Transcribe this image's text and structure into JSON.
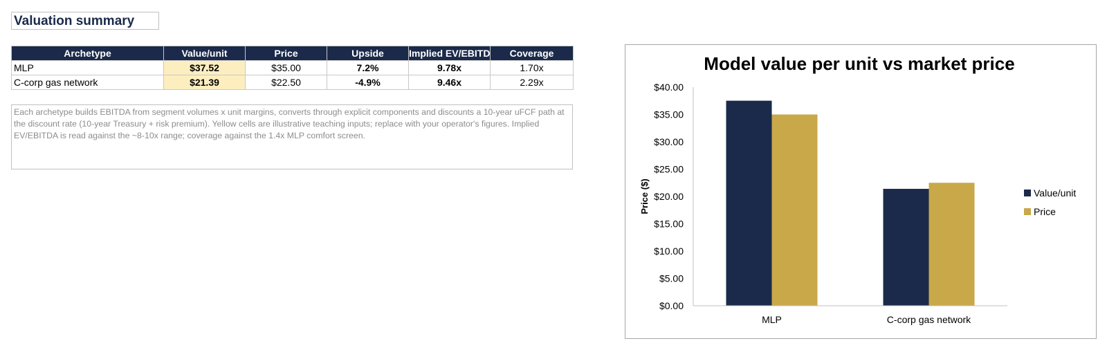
{
  "sheet": {
    "title": "Valuation summary",
    "note": "Each archetype builds EBITDA from segment volumes x unit margins, converts through explicit components and discounts a 10-year uFCF path at the discount rate (10-year Treasury + risk premium). Yellow cells are illustrative teaching inputs; replace with your operator's figures. Implied EV/EBITDA is read against the ~8-10x range; coverage against the 1.4x MLP comfort screen."
  },
  "table": {
    "headers": [
      "Archetype",
      "Value/unit",
      "Price",
      "Upside",
      "Implied EV/EBITDA",
      "Coverage"
    ],
    "rows": [
      {
        "archetype": "MLP",
        "value": "$37.52",
        "price": "$35.00",
        "upside": "7.2%",
        "ev_ebitda": "9.78x",
        "coverage": "1.70x"
      },
      {
        "archetype": "C-corp gas network",
        "value": "$21.39",
        "price": "$22.50",
        "upside": "-4.9%",
        "ev_ebitda": "9.46x",
        "coverage": "2.29x"
      }
    ]
  },
  "colors": {
    "navy": "#1b2a4a",
    "gold": "#c9a84a",
    "input_yellow": "#fdeec0",
    "price_green": "#1e7b1e"
  },
  "chart_data": {
    "type": "bar",
    "title": "Model value per unit vs market price",
    "xlabel": "",
    "ylabel": "Price ($)",
    "categories": [
      "MLP",
      "C-corp gas network"
    ],
    "series": [
      {
        "name": "Value/unit",
        "values": [
          37.52,
          21.39
        ],
        "color": "#1b2a4a"
      },
      {
        "name": "Price",
        "values": [
          35.0,
          22.5
        ],
        "color": "#c9a84a"
      }
    ],
    "ylim": [
      0,
      40
    ],
    "yticks": [
      "$0.00",
      "$5.00",
      "$10.00",
      "$15.00",
      "$20.00",
      "$25.00",
      "$30.00",
      "$35.00",
      "$40.00"
    ],
    "grid": false,
    "legend_position": "right"
  }
}
